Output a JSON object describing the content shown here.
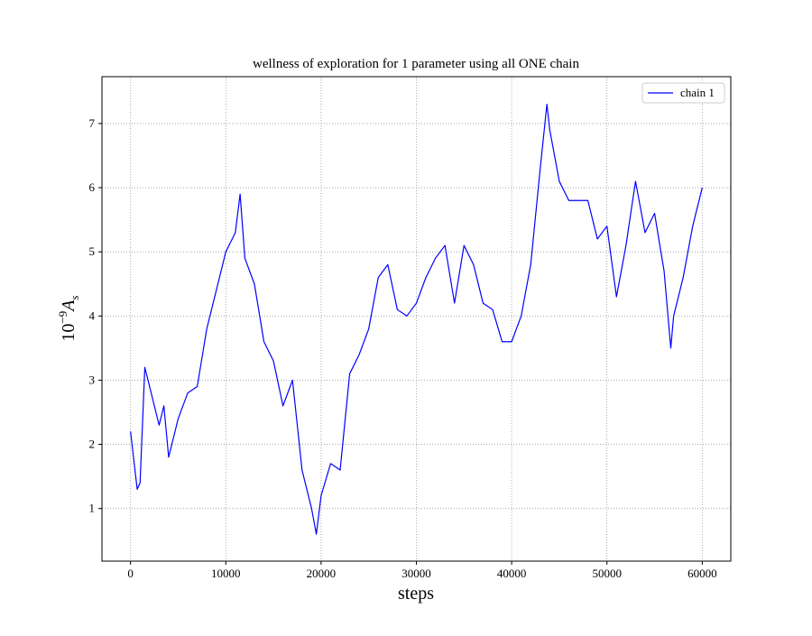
{
  "chart_data": {
    "type": "line",
    "title": "wellness of exploration for 1 parameter using all ONE chain",
    "x_label": "steps",
    "y_label": {
      "base": "10",
      "exponent": "−9",
      "symbol": "A",
      "subscript": "s"
    },
    "x": [
      0,
      700,
      1000,
      1500,
      2000,
      3000,
      3500,
      4000,
      5000,
      6000,
      7000,
      8000,
      9000,
      10000,
      11000,
      11500,
      12000,
      13000,
      14000,
      15000,
      16000,
      17000,
      18000,
      19000,
      19500,
      20000,
      21000,
      22000,
      23000,
      24000,
      25000,
      26000,
      27000,
      28000,
      29000,
      30000,
      31000,
      32000,
      33000,
      34000,
      35000,
      36000,
      37000,
      38000,
      39000,
      40000,
      41000,
      42000,
      43000,
      43700,
      44000,
      45000,
      46000,
      47000,
      48000,
      49000,
      50000,
      51000,
      52000,
      53000,
      54000,
      55000,
      56000,
      56700,
      57000,
      58000,
      59000,
      60000
    ],
    "series": [
      {
        "name": "chain 1",
        "color": "#0000ff",
        "values": [
          2.2,
          1.3,
          1.4,
          3.2,
          2.9,
          2.3,
          2.6,
          1.8,
          2.4,
          2.8,
          2.9,
          3.8,
          4.4,
          5.0,
          5.3,
          5.9,
          4.9,
          4.5,
          3.6,
          3.3,
          2.6,
          3.0,
          1.6,
          1.0,
          0.6,
          1.2,
          1.7,
          1.6,
          3.1,
          3.4,
          3.8,
          4.6,
          4.8,
          4.1,
          4.0,
          4.2,
          4.6,
          4.9,
          5.1,
          4.2,
          5.1,
          4.8,
          4.2,
          4.1,
          3.6,
          3.6,
          4.0,
          4.8,
          6.3,
          7.3,
          6.9,
          6.1,
          5.8,
          5.8,
          5.8,
          5.2,
          5.4,
          4.3,
          5.1,
          6.1,
          5.3,
          5.6,
          4.7,
          3.5,
          4.0,
          4.6,
          5.4,
          6.0
        ]
      }
    ],
    "xlim": [
      -3000,
      63000
    ],
    "ylim": [
      0.18,
      7.73
    ],
    "xticks": [
      0,
      10000,
      20000,
      30000,
      40000,
      50000,
      60000
    ],
    "yticks": [
      1,
      2,
      3,
      4,
      5,
      6,
      7
    ],
    "grid": true,
    "legend": "upper right"
  }
}
